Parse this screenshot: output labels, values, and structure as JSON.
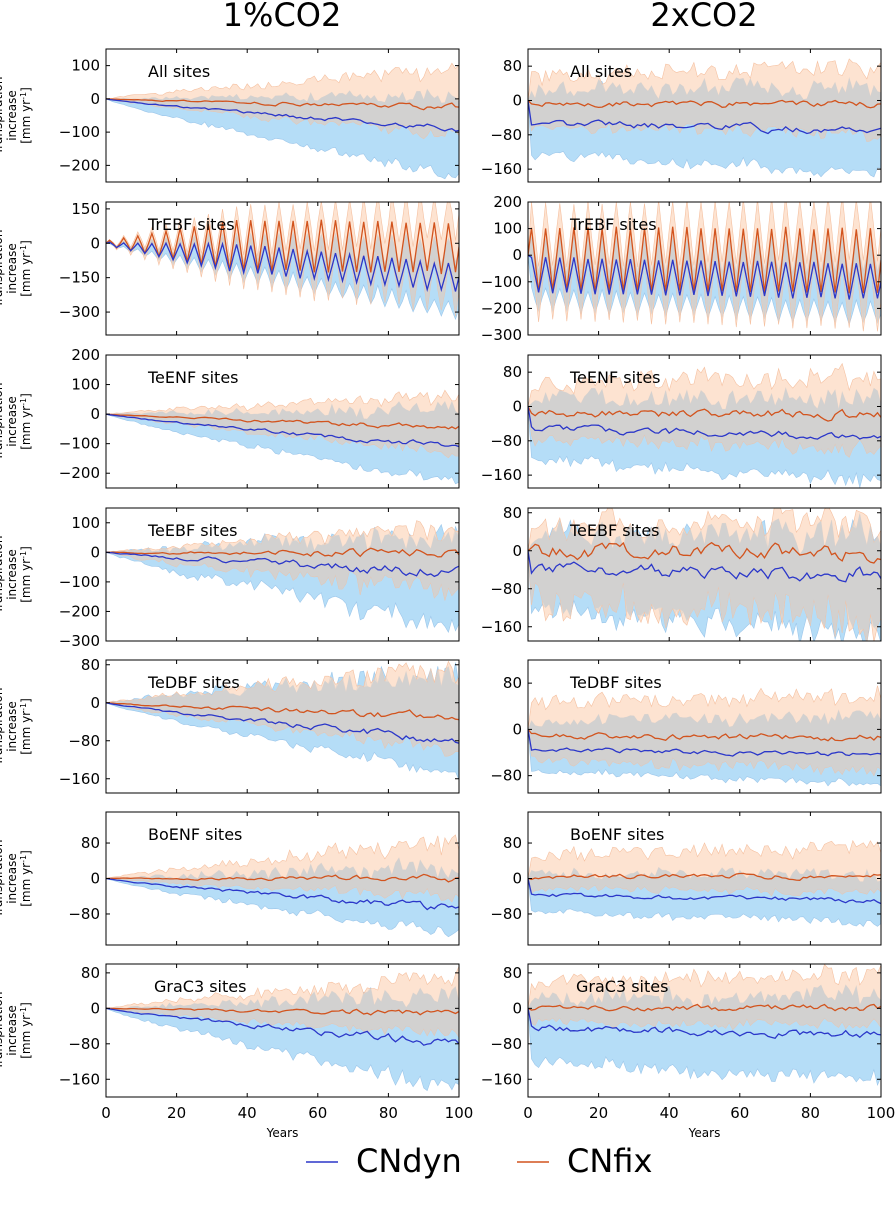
{
  "figure": {
    "column_titles": [
      "1%CO2",
      "2xCO2"
    ],
    "ylabel_lines": [
      "Transpiration",
      "increase",
      "[mm yr",
      "-1",
      "]"
    ],
    "xlabel": "Years",
    "xticks": [
      0,
      20,
      40,
      60,
      80,
      100
    ],
    "legend": [
      {
        "label": "CNdyn",
        "color": "#2b37c9"
      },
      {
        "label": "CNfix",
        "color": "#d2541e"
      }
    ],
    "colors": {
      "cndyn_line": "#2b37c9",
      "cnfix_line": "#d2541e",
      "cndyn_band": "#b5ddf7",
      "cnfix_band": "#fcd9c2",
      "overlap_band": "#cfcfcf"
    }
  },
  "chart_data": [
    {
      "type": "line",
      "column": "1%CO2",
      "row": 0,
      "title": "All sites",
      "xlim": [
        0,
        100
      ],
      "ylim": [
        -250,
        150
      ],
      "yticks": [
        100,
        0,
        -100,
        -200
      ],
      "cndyn_end": -90,
      "cndyn_low_end": -230,
      "cndyn_high_end": 10,
      "cnfix_end": -25,
      "cnfix_low_end": -110,
      "cnfix_high_end": 85,
      "oscillation": 0,
      "noise": 0.25,
      "ramp": true,
      "series": [
        {
          "name": "CNdyn"
        },
        {
          "name": "CNfix"
        }
      ]
    },
    {
      "type": "line",
      "column": "2xCO2",
      "row": 0,
      "title": "All sites",
      "xlim": [
        0,
        100
      ],
      "ylim": [
        -190,
        120
      ],
      "yticks": [
        80,
        0,
        -80,
        -160
      ],
      "cndyn_end": -70,
      "cndyn_low_end": -170,
      "cndyn_high_end": 30,
      "cnfix_end": -10,
      "cnfix_low_end": -80,
      "cnfix_high_end": 75,
      "oscillation": 0,
      "noise": 0.3,
      "ramp": false,
      "series": [
        {
          "name": "CNdyn"
        },
        {
          "name": "CNfix"
        }
      ]
    },
    {
      "type": "line",
      "column": "1%CO2",
      "row": 1,
      "title": "TrEBF sites",
      "xlim": [
        0,
        100
      ],
      "ylim": [
        -400,
        180
      ],
      "yticks": [
        150,
        0,
        -150,
        -300
      ],
      "cndyn_end": -150,
      "cndyn_low_end": -290,
      "cndyn_high_end": -30,
      "cnfix_end": -20,
      "cnfix_low_end": -200,
      "cnfix_high_end": 120,
      "oscillation": 110,
      "noise": 0.15,
      "ramp": true,
      "series": [
        {
          "name": "CNdyn"
        },
        {
          "name": "CNfix"
        }
      ]
    },
    {
      "type": "line",
      "column": "2xCO2",
      "row": 1,
      "title": "TrEBF sites",
      "xlim": [
        0,
        100
      ],
      "ylim": [
        -300,
        200
      ],
      "yticks": [
        200,
        100,
        0,
        -100,
        -200,
        -300
      ],
      "cndyn_end": -100,
      "cndyn_low_end": -220,
      "cndyn_high_end": 0,
      "cnfix_end": -20,
      "cnfix_low_end": -160,
      "cnfix_high_end": 100,
      "oscillation": 120,
      "noise": 0.1,
      "ramp": false,
      "series": [
        {
          "name": "CNdyn"
        },
        {
          "name": "CNfix"
        }
      ]
    },
    {
      "type": "line",
      "column": "1%CO2",
      "row": 2,
      "title": "TeENF sites",
      "xlim": [
        0,
        100
      ],
      "ylim": [
        -250,
        200
      ],
      "yticks": [
        200,
        100,
        0,
        -100,
        -200
      ],
      "cndyn_end": -110,
      "cndyn_low_end": -230,
      "cndyn_high_end": 20,
      "cnfix_end": -45,
      "cnfix_low_end": -130,
      "cnfix_high_end": 60,
      "oscillation": 0,
      "noise": 0.3,
      "ramp": true,
      "series": [
        {
          "name": "CNdyn"
        },
        {
          "name": "CNfix"
        }
      ]
    },
    {
      "type": "line",
      "column": "2xCO2",
      "row": 2,
      "title": "TeENF sites",
      "xlim": [
        0,
        100
      ],
      "ylim": [
        -190,
        120
      ],
      "yticks": [
        80,
        0,
        -80,
        -160
      ],
      "cndyn_end": -70,
      "cndyn_low_end": -170,
      "cndyn_high_end": 20,
      "cnfix_end": -20,
      "cnfix_low_end": -100,
      "cnfix_high_end": 70,
      "oscillation": 0,
      "noise": 0.35,
      "ramp": false,
      "series": [
        {
          "name": "CNdyn"
        },
        {
          "name": "CNfix"
        }
      ]
    },
    {
      "type": "line",
      "column": "1%CO2",
      "row": 3,
      "title": "TeEBF sites",
      "xlim": [
        0,
        100
      ],
      "ylim": [
        -300,
        150
      ],
      "yticks": [
        100,
        0,
        -100,
        -200,
        -300
      ],
      "cndyn_end": -70,
      "cndyn_low_end": -250,
      "cndyn_high_end": 60,
      "cnfix_end": -5,
      "cnfix_low_end": -140,
      "cnfix_high_end": 80,
      "oscillation": 0,
      "noise": 0.45,
      "ramp": true,
      "series": [
        {
          "name": "CNdyn"
        },
        {
          "name": "CNfix"
        }
      ]
    },
    {
      "type": "line",
      "column": "2xCO2",
      "row": 3,
      "title": "TeEBF sites",
      "xlim": [
        0,
        100
      ],
      "ylim": [
        -190,
        90
      ],
      "yticks": [
        80,
        0,
        -80,
        -160
      ],
      "cndyn_end": -50,
      "cndyn_low_end": -170,
      "cndyn_high_end": 40,
      "cnfix_end": 0,
      "cnfix_low_end": -140,
      "cnfix_high_end": 70,
      "oscillation": 0,
      "noise": 0.5,
      "ramp": false,
      "series": [
        {
          "name": "CNdyn"
        },
        {
          "name": "CNfix"
        }
      ]
    },
    {
      "type": "line",
      "column": "1%CO2",
      "row": 4,
      "title": "TeDBF sites",
      "xlim": [
        0,
        100
      ],
      "ylim": [
        -190,
        90
      ],
      "yticks": [
        80,
        0,
        -80,
        -160
      ],
      "cndyn_end": -80,
      "cndyn_low_end": -150,
      "cndyn_high_end": 60,
      "cnfix_end": -30,
      "cnfix_low_end": -100,
      "cnfix_high_end": 70,
      "oscillation": 0,
      "noise": 0.3,
      "ramp": true,
      "series": [
        {
          "name": "CNdyn"
        },
        {
          "name": "CNfix"
        }
      ]
    },
    {
      "type": "line",
      "column": "2xCO2",
      "row": 4,
      "title": "TeDBF sites",
      "xlim": [
        0,
        100
      ],
      "ylim": [
        -110,
        120
      ],
      "yticks": [
        80,
        0,
        -80
      ],
      "cndyn_end": -45,
      "cndyn_low_end": -95,
      "cndyn_high_end": 20,
      "cnfix_end": -15,
      "cnfix_low_end": -70,
      "cnfix_high_end": 60,
      "oscillation": 0,
      "noise": 0.25,
      "ramp": false,
      "series": [
        {
          "name": "CNdyn"
        },
        {
          "name": "CNfix"
        }
      ]
    },
    {
      "type": "line",
      "column": "1%CO2",
      "row": 5,
      "title": "BoENF sites",
      "xlim": [
        0,
        100
      ],
      "ylim": [
        -150,
        150
      ],
      "yticks": [
        80,
        0,
        -80
      ],
      "cndyn_end": -70,
      "cndyn_low_end": -130,
      "cndyn_high_end": 20,
      "cnfix_end": 0,
      "cnfix_low_end": -40,
      "cnfix_high_end": 80,
      "oscillation": 0,
      "noise": 0.4,
      "ramp": true,
      "series": [
        {
          "name": "CNdyn"
        },
        {
          "name": "CNfix"
        }
      ]
    },
    {
      "type": "line",
      "column": "2xCO2",
      "row": 5,
      "title": "BoENF sites",
      "xlim": [
        0,
        100
      ],
      "ylim": [
        -150,
        150
      ],
      "yticks": [
        80,
        0,
        -80
      ],
      "cndyn_end": -50,
      "cndyn_low_end": -100,
      "cndyn_high_end": 10,
      "cnfix_end": 5,
      "cnfix_low_end": -30,
      "cnfix_high_end": 70,
      "oscillation": 0,
      "noise": 0.35,
      "ramp": false,
      "series": [
        {
          "name": "CNdyn"
        },
        {
          "name": "CNfix"
        }
      ]
    },
    {
      "type": "line",
      "column": "1%CO2",
      "row": 6,
      "title": "GraC3 sites",
      "xlim": [
        0,
        100
      ],
      "ylim": [
        -200,
        100
      ],
      "yticks": [
        80,
        0,
        -80,
        -160
      ],
      "cndyn_end": -80,
      "cndyn_low_end": -180,
      "cndyn_high_end": 30,
      "cnfix_end": -10,
      "cnfix_low_end": -60,
      "cnfix_high_end": 70,
      "oscillation": 0,
      "noise": 0.35,
      "ramp": true,
      "series": [
        {
          "name": "CNdyn"
        },
        {
          "name": "CNfix"
        }
      ]
    },
    {
      "type": "line",
      "column": "2xCO2",
      "row": 6,
      "title": "GraC3 sites",
      "xlim": [
        0,
        100
      ],
      "ylim": [
        -200,
        100
      ],
      "yticks": [
        80,
        0,
        -80,
        -160
      ],
      "cndyn_end": -60,
      "cndyn_low_end": -160,
      "cndyn_high_end": 30,
      "cnfix_end": 0,
      "cnfix_low_end": -40,
      "cnfix_high_end": 75,
      "oscillation": 0,
      "noise": 0.35,
      "ramp": false,
      "series": [
        {
          "name": "CNdyn"
        },
        {
          "name": "CNfix"
        }
      ]
    }
  ]
}
